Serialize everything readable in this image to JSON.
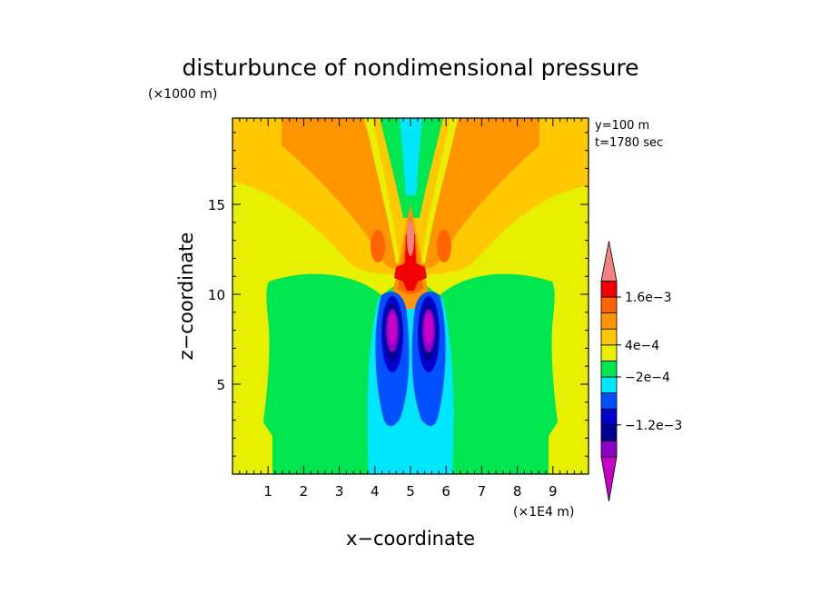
{
  "chart_data": {
    "type": "heatmap",
    "title": "disturbunce of nondimensional pressure",
    "xlabel": "x−coordinate",
    "ylabel": "z−coordinate",
    "x_unit": "(×1E4 m)",
    "y_unit": "(×1000 m)",
    "info": [
      "y=100 m",
      "t=1780 sec"
    ],
    "xlim": [
      0,
      10
    ],
    "ylim": [
      0,
      19.8
    ],
    "x_ticks": [
      1,
      2,
      3,
      4,
      5,
      6,
      7,
      8,
      9
    ],
    "y_ticks": [
      5,
      10,
      15
    ],
    "colorbar": {
      "levels": [
        {
          "color": "#c800c8"
        },
        {
          "color": "#8c00c8"
        },
        {
          "color": "#000096"
        },
        {
          "color": "#0000cd"
        },
        {
          "color": "#0050ff"
        },
        {
          "color": "#00e6ff"
        },
        {
          "color": "#00e650"
        },
        {
          "color": "#e6f000"
        },
        {
          "color": "#ffc800"
        },
        {
          "color": "#ff9600"
        },
        {
          "color": "#ff6400"
        },
        {
          "color": "#f00000"
        },
        {
          "color": "#f08282"
        }
      ],
      "labels": [
        {
          "text": "−1.2e−3",
          "boundary": 3
        },
        {
          "text": "−2e−4",
          "boundary": 6
        },
        {
          "text": "4e−4",
          "boundary": 8
        },
        {
          "text": "1.6e−3",
          "boundary": 11
        }
      ]
    }
  }
}
